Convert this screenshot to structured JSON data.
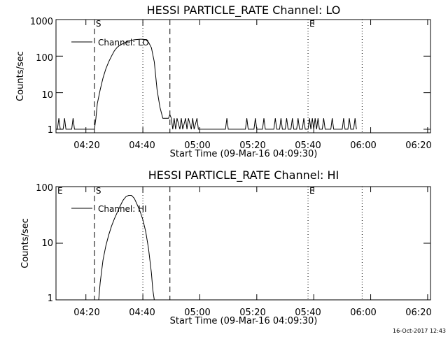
{
  "footer_timestamp": "16-Oct-2017 12:43",
  "chart_data": [
    {
      "type": "line",
      "title": "HESSI PARTICLE_RATE Channel: LO",
      "xlabel": "Start Time (09-Mar-16 04:09:30)",
      "ylabel": "Counts/sec",
      "y_scale": "log",
      "xlim": [
        "04:09:30",
        "06:21:00"
      ],
      "ylim": [
        0.8,
        1000
      ],
      "x_ticks": [
        "04:20",
        "04:40",
        "05:00",
        "05:20",
        "05:40",
        "06:00",
        "06:20"
      ],
      "y_ticks": [
        "1",
        "10",
        "100",
        "1000"
      ],
      "legend": {
        "placement": "top-left",
        "label": "Channel: LO"
      },
      "markers": [
        {
          "time": "04:23:00",
          "style": "dashed",
          "label": "S"
        },
        {
          "time": "04:40:00",
          "style": "dotted",
          "label": ""
        },
        {
          "time": "04:49:30",
          "style": "dashed",
          "label": ""
        },
        {
          "time": "05:38:00",
          "style": "dotted",
          "label": "E"
        },
        {
          "time": "05:57:00",
          "style": "dotted",
          "label": ""
        }
      ],
      "series": [
        {
          "name": "Channel: LO",
          "x": [
            "04:09:30",
            "04:10:00",
            "04:10:30",
            "04:11:00",
            "04:12:00",
            "04:12:30",
            "04:13:00",
            "04:14:00",
            "04:15:00",
            "04:15:30",
            "04:16:00",
            "04:23:00",
            "04:23:30",
            "04:24:00",
            "04:25:00",
            "04:26:00",
            "04:27:00",
            "04:28:00",
            "04:29:00",
            "04:30:00",
            "04:31:00",
            "04:32:00",
            "04:33:00",
            "04:34:00",
            "04:35:00",
            "04:36:00",
            "04:37:00",
            "04:38:00",
            "04:39:00",
            "04:40:00",
            "04:41:00",
            "04:42:00",
            "04:43:00",
            "04:44:00",
            "04:45:00",
            "04:46:00",
            "04:47:00",
            "04:48:00",
            "04:49:00",
            "04:49:30",
            "04:50:00",
            "04:50:30",
            "04:51:00",
            "04:51:30",
            "04:52:00",
            "04:53:00",
            "04:53:30",
            "04:54:00",
            "04:55:00",
            "04:55:30",
            "04:56:00",
            "04:57:00",
            "04:57:30",
            "04:58:00",
            "04:59:00",
            "04:59:30",
            "05:00:00",
            "05:09:00",
            "05:09:30",
            "05:10:00",
            "05:16:00",
            "05:16:30",
            "05:17:00",
            "05:19:00",
            "05:19:30",
            "05:20:00",
            "05:22:00",
            "05:22:30",
            "05:23:00",
            "05:26:00",
            "05:26:30",
            "05:27:00",
            "05:28:00",
            "05:28:30",
            "05:29:00",
            "05:30:00",
            "05:30:30",
            "05:31:00",
            "05:32:00",
            "05:32:30",
            "05:33:00",
            "05:34:00",
            "05:34:30",
            "05:35:00",
            "05:36:00",
            "05:36:30",
            "05:37:00",
            "05:38:00",
            "05:38:30",
            "05:39:00",
            "05:39:30",
            "05:40:00",
            "05:40:30",
            "05:41:00",
            "05:41:30",
            "05:42:00",
            "05:43:00",
            "05:43:30",
            "05:44:00",
            "05:46:00",
            "05:46:30",
            "05:47:00",
            "05:48:00",
            "05:50:00",
            "05:50:30",
            "05:51:00",
            "05:52:00",
            "05:52:30",
            "05:53:00",
            "05:54:00",
            "05:54:30",
            "05:55:00"
          ],
          "y": [
            1,
            1,
            2,
            1,
            1,
            2,
            1,
            1,
            1,
            2,
            1,
            1,
            2,
            5,
            12,
            25,
            45,
            70,
            100,
            140,
            175,
            200,
            220,
            240,
            260,
            270,
            280,
            285,
            290,
            290,
            280,
            240,
            170,
            70,
            12,
            4,
            2,
            2,
            2,
            2.5,
            2,
            1,
            2,
            1,
            2,
            1,
            2,
            1,
            2,
            1,
            2,
            1,
            2,
            1,
            2,
            1,
            1,
            1,
            2,
            1,
            1,
            2,
            1,
            1,
            2,
            1,
            1,
            2,
            1,
            1,
            2,
            1,
            1,
            2,
            1,
            1,
            2,
            1,
            1,
            2,
            1,
            1,
            2,
            1,
            1,
            2,
            1,
            1,
            2,
            1,
            2,
            1,
            2,
            1,
            2,
            1,
            1,
            2,
            1,
            1,
            2,
            1,
            1,
            1,
            2,
            1,
            1,
            2,
            1,
            1,
            2,
            1
          ]
        }
      ]
    },
    {
      "type": "line",
      "title": "HESSI PARTICLE_RATE Channel: HI",
      "xlabel": "Start Time (09-Mar-16 04:09:30)",
      "ylabel": "Counts/sec",
      "y_scale": "log",
      "xlim": [
        "04:09:30",
        "06:21:00"
      ],
      "ylim": [
        1,
        100
      ],
      "x_ticks": [
        "04:20",
        "04:40",
        "05:00",
        "05:20",
        "05:40",
        "06:00",
        "06:20"
      ],
      "y_ticks": [
        "1",
        "10",
        "100"
      ],
      "legend": {
        "placement": "top-left",
        "label": "Channel: HI"
      },
      "markers": [
        {
          "time": "04:09:30",
          "style": "none",
          "label": "E"
        },
        {
          "time": "04:23:00",
          "style": "dashed",
          "label": "S"
        },
        {
          "time": "04:40:00",
          "style": "dotted",
          "label": ""
        },
        {
          "time": "04:49:30",
          "style": "dashed",
          "label": ""
        },
        {
          "time": "05:38:00",
          "style": "dotted",
          "label": "E"
        },
        {
          "time": "05:57:00",
          "style": "dotted",
          "label": ""
        }
      ],
      "series": [
        {
          "name": "Channel: HI",
          "x": [
            "04:24:30",
            "04:25:00",
            "04:26:00",
            "04:27:00",
            "04:28:00",
            "04:29:00",
            "04:30:00",
            "04:31:00",
            "04:32:00",
            "04:33:00",
            "04:34:00",
            "04:35:00",
            "04:36:00",
            "04:37:00",
            "04:38:00",
            "04:39:00",
            "04:40:00",
            "04:41:00",
            "04:42:00",
            "04:43:00",
            "04:43:30",
            "04:44:00"
          ],
          "y": [
            1,
            2,
            5,
            9,
            14,
            20,
            27,
            35,
            45,
            57,
            66,
            70,
            70,
            62,
            48,
            37,
            26,
            16,
            8,
            3,
            1.5,
            1
          ]
        }
      ]
    }
  ]
}
